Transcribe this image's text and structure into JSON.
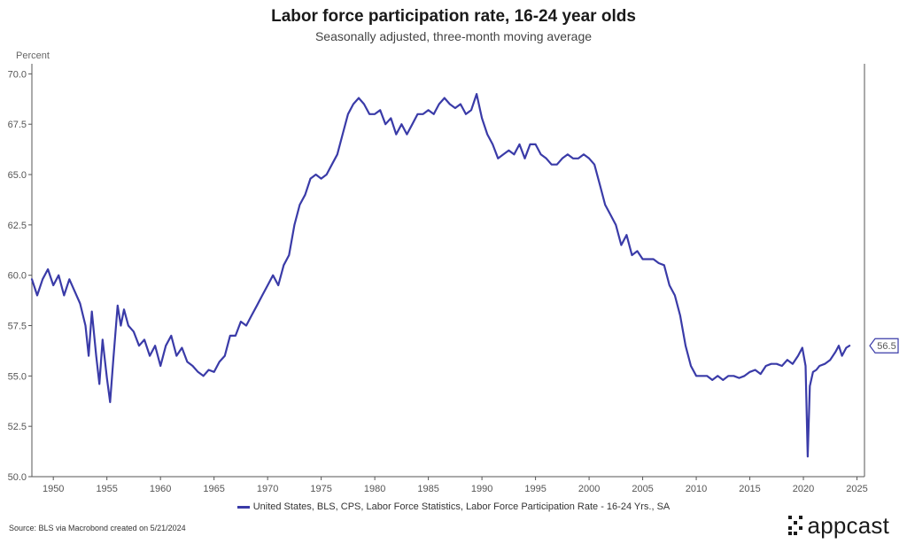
{
  "chart_data": {
    "type": "line",
    "title": "Labor force participation rate, 16-24 year olds",
    "subtitle": "Seasonally adjusted, three-month moving average",
    "ylabel": "Percent",
    "xlim": [
      1948.0,
      2025.7
    ],
    "ylim": [
      50.0,
      70.5
    ],
    "xticks": [
      "1950",
      "1955",
      "1960",
      "1965",
      "1970",
      "1975",
      "1980",
      "1985",
      "1990",
      "1995",
      "2000",
      "2005",
      "2010",
      "2015",
      "2020",
      "2025"
    ],
    "yticks": [
      "50.0",
      "52.5",
      "55.0",
      "57.5",
      "60.0",
      "62.5",
      "65.0",
      "67.5",
      "70.0"
    ],
    "grid": false,
    "legend_placement": "bottom",
    "last_value_label": "56.5",
    "color": "#3a3ba8",
    "series": [
      {
        "name": "United States, BLS, CPS, Labor Force Statistics, Labor Force Participation Rate - 16-24 Yrs., SA",
        "x": [
          1948.0,
          1948.5,
          1949.0,
          1949.5,
          1950.0,
          1950.5,
          1951.0,
          1951.5,
          1952.0,
          1952.5,
          1953.0,
          1953.3,
          1953.6,
          1954.0,
          1954.3,
          1954.6,
          1955.0,
          1955.3,
          1955.6,
          1956.0,
          1956.3,
          1956.6,
          1957.0,
          1957.5,
          1958.0,
          1958.5,
          1959.0,
          1959.5,
          1960.0,
          1960.5,
          1961.0,
          1961.5,
          1962.0,
          1962.5,
          1963.0,
          1963.5,
          1964.0,
          1964.5,
          1965.0,
          1965.5,
          1966.0,
          1966.5,
          1967.0,
          1967.5,
          1968.0,
          1968.5,
          1969.0,
          1969.5,
          1970.0,
          1970.5,
          1971.0,
          1971.5,
          1972.0,
          1972.5,
          1973.0,
          1973.5,
          1974.0,
          1974.5,
          1975.0,
          1975.5,
          1976.0,
          1976.5,
          1977.0,
          1977.5,
          1978.0,
          1978.5,
          1979.0,
          1979.5,
          1980.0,
          1980.5,
          1981.0,
          1981.5,
          1982.0,
          1982.5,
          1983.0,
          1983.5,
          1984.0,
          1984.5,
          1985.0,
          1985.5,
          1986.0,
          1986.5,
          1987.0,
          1987.5,
          1988.0,
          1988.5,
          1989.0,
          1989.5,
          1990.0,
          1990.5,
          1991.0,
          1991.5,
          1992.0,
          1992.5,
          1993.0,
          1993.5,
          1994.0,
          1994.5,
          1995.0,
          1995.5,
          1996.0,
          1996.5,
          1997.0,
          1997.5,
          1998.0,
          1998.5,
          1999.0,
          1999.5,
          2000.0,
          2000.5,
          2001.0,
          2001.5,
          2002.0,
          2002.5,
          2003.0,
          2003.5,
          2004.0,
          2004.5,
          2005.0,
          2005.5,
          2006.0,
          2006.5,
          2007.0,
          2007.5,
          2008.0,
          2008.5,
          2009.0,
          2009.5,
          2010.0,
          2010.5,
          2011.0,
          2011.5,
          2012.0,
          2012.5,
          2013.0,
          2013.5,
          2014.0,
          2014.5,
          2015.0,
          2015.5,
          2016.0,
          2016.5,
          2017.0,
          2017.5,
          2018.0,
          2018.5,
          2019.0,
          2019.5,
          2019.9,
          2020.2,
          2020.4,
          2020.6,
          2020.9,
          2021.2,
          2021.5,
          2022.0,
          2022.5,
          2023.0,
          2023.3,
          2023.6,
          2024.0,
          2024.3
        ],
        "y": [
          59.8,
          59.0,
          59.8,
          60.3,
          59.5,
          60.0,
          59.0,
          59.8,
          59.2,
          58.6,
          57.5,
          56.0,
          58.2,
          56.0,
          54.6,
          56.8,
          54.9,
          53.7,
          55.8,
          58.5,
          57.5,
          58.3,
          57.5,
          57.2,
          56.5,
          56.8,
          56.0,
          56.5,
          55.5,
          56.5,
          57.0,
          56.0,
          56.4,
          55.7,
          55.5,
          55.2,
          55.0,
          55.3,
          55.2,
          55.7,
          56.0,
          57.0,
          57.0,
          57.7,
          57.5,
          58.0,
          58.5,
          59.0,
          59.5,
          60.0,
          59.5,
          60.5,
          61.0,
          62.5,
          63.5,
          64.0,
          64.8,
          65.0,
          64.8,
          65.0,
          65.5,
          66.0,
          67.0,
          68.0,
          68.5,
          68.8,
          68.5,
          68.0,
          68.0,
          68.2,
          67.5,
          67.8,
          67.0,
          67.5,
          67.0,
          67.5,
          68.0,
          68.0,
          68.2,
          68.0,
          68.5,
          68.8,
          68.5,
          68.3,
          68.5,
          68.0,
          68.2,
          69.0,
          67.8,
          67.0,
          66.5,
          65.8,
          66.0,
          66.2,
          66.0,
          66.5,
          65.8,
          66.5,
          66.5,
          66.0,
          65.8,
          65.5,
          65.5,
          65.8,
          66.0,
          65.8,
          65.8,
          66.0,
          65.8,
          65.5,
          64.5,
          63.5,
          63.0,
          62.5,
          61.5,
          62.0,
          61.0,
          61.2,
          60.8,
          60.8,
          60.8,
          60.6,
          60.5,
          59.5,
          59.0,
          58.0,
          56.5,
          55.5,
          55.0,
          55.0,
          55.0,
          54.8,
          55.0,
          54.8,
          55.0,
          55.0,
          54.9,
          55.0,
          55.2,
          55.3,
          55.1,
          55.5,
          55.6,
          55.6,
          55.5,
          55.8,
          55.6,
          56.0,
          56.4,
          55.5,
          51.0,
          54.5,
          55.2,
          55.3,
          55.5,
          55.6,
          55.8,
          56.2,
          56.5,
          56.0,
          56.4,
          56.5
        ]
      }
    ]
  },
  "source_text": "Source: BLS via Macrobond created on 5/21/2024",
  "logo_text": "appcast"
}
